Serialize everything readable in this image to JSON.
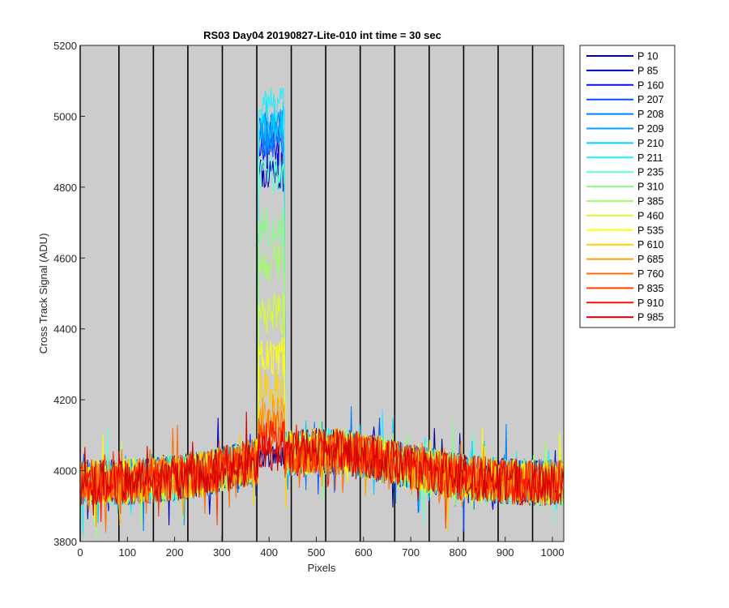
{
  "chart_data": {
    "type": "line",
    "title": "RS03 Day04 20190827-Lite-010 int time = 30 sec",
    "xlabel": "Pixels",
    "ylabel": "Cross Track Signal (ADU)",
    "xlim": [
      0,
      1024
    ],
    "ylim": [
      3800,
      5200
    ],
    "xticks": [
      0,
      100,
      200,
      300,
      400,
      500,
      600,
      700,
      800,
      900,
      1000
    ],
    "yticks": [
      3800,
      4000,
      4200,
      4400,
      4600,
      4800,
      5000,
      5200
    ],
    "background": "#cccccc",
    "grid": false,
    "legend_position": "outside-right",
    "vertical_lines": [
      0,
      82,
      155,
      228,
      301,
      374,
      447,
      520,
      593,
      666,
      739,
      812,
      885,
      958
    ],
    "series": [
      {
        "name": "P 10",
        "color": "#00008f",
        "peak": 4070
      },
      {
        "name": "P 85",
        "color": "#0000bf",
        "peak": 4900
      },
      {
        "name": "P 160",
        "color": "#0010ff",
        "peak": 4980
      },
      {
        "name": "P 207",
        "color": "#0050ff",
        "peak": 5000
      },
      {
        "name": "P 208",
        "color": "#0080ff",
        "peak": 5020
      },
      {
        "name": "P 209",
        "color": "#00a0ff",
        "peak": 5010
      },
      {
        "name": "P 210",
        "color": "#00cfff",
        "peak": 5050
      },
      {
        "name": "P 211",
        "color": "#20efff",
        "peak": 5080
      },
      {
        "name": "P 235",
        "color": "#60ffcf",
        "peak": 4900
      },
      {
        "name": "P 310",
        "color": "#80ff80",
        "peak": 4750
      },
      {
        "name": "P 385",
        "color": "#9fff60",
        "peak": 4640
      },
      {
        "name": "P 460",
        "color": "#cfff30",
        "peak": 4500
      },
      {
        "name": "P 535",
        "color": "#ffff00",
        "peak": 4380
      },
      {
        "name": "P 610",
        "color": "#ffcf00",
        "peak": 4290
      },
      {
        "name": "P 685",
        "color": "#ffa000",
        "peak": 4220
      },
      {
        "name": "P 760",
        "color": "#ff7000",
        "peak": 4180
      },
      {
        "name": "P 835",
        "color": "#ff4000",
        "peak": 4160
      },
      {
        "name": "P 910",
        "color": "#ff1000",
        "peak": 4140
      },
      {
        "name": "P 985",
        "color": "#cf0000",
        "peak": 4120
      }
    ]
  }
}
